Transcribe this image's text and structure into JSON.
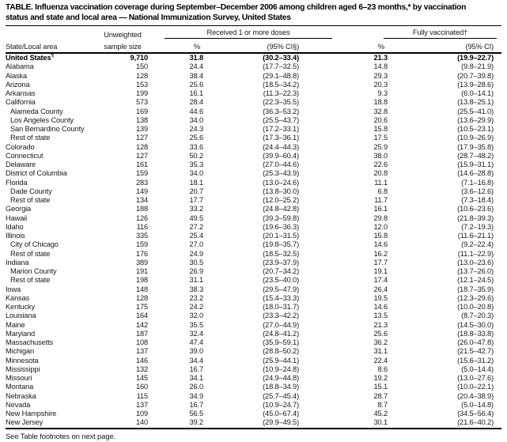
{
  "title": {
    "line1": "TABLE. Influenza vaccination coverage during September–December 2006 among children aged 6–23 months,* by vaccination",
    "line2": "status and state and local area — National Immunization Survey, United States"
  },
  "header": {
    "state_col": "State/Local area",
    "sample_line1": "Unweighted",
    "sample_line2": "sample size",
    "group1": "Received 1 or more doses",
    "group2": "Fully vaccinated†",
    "pct1": "%",
    "ci1": "(95% CI§)",
    "pct2": "%",
    "ci2": "(95% CI)"
  },
  "rows": [
    {
      "area": "United States",
      "marker": "¶",
      "bold": true,
      "indent": false,
      "sample": "9,710",
      "dose1_pct": "31.8",
      "dose1_ci": "(30.2–33.4)",
      "full_pct": "21.3",
      "full_ci": "(19.9–22.7)"
    },
    {
      "area": "Alabama",
      "indent": false,
      "sample": "150",
      "dose1_pct": "24.4",
      "dose1_ci": "(17.7–32.5)",
      "full_pct": "14.8",
      "full_ci": "(9.8–21.9)"
    },
    {
      "area": "Alaska",
      "indent": false,
      "sample": "128",
      "dose1_pct": "38.4",
      "dose1_ci": "(29.1–48.8)",
      "full_pct": "29.3",
      "full_ci": "(20.7–39.8)"
    },
    {
      "area": "Arizona",
      "indent": false,
      "sample": "153",
      "dose1_pct": "25.6",
      "dose1_ci": "(18.5–34.2)",
      "full_pct": "20.3",
      "full_ci": "(13.9–28.6)"
    },
    {
      "area": "Arkansas",
      "indent": false,
      "sample": "199",
      "dose1_pct": "16.1",
      "dose1_ci": "(11.3–22.3)",
      "full_pct": "9.3",
      "full_ci": "(6.0–14.1)"
    },
    {
      "area": "California",
      "indent": false,
      "sample": "573",
      "dose1_pct": "28.4",
      "dose1_ci": "(22.3–35.5)",
      "full_pct": "18.8",
      "full_ci": "(13.8–25.1)"
    },
    {
      "area": "Alameda County",
      "indent": true,
      "sample": "169",
      "dose1_pct": "44.6",
      "dose1_ci": "(36.3–53.2)",
      "full_pct": "32.8",
      "full_ci": "(25.5–41.0)"
    },
    {
      "area": "Los Angeles County",
      "indent": true,
      "sample": "138",
      "dose1_pct": "34.0",
      "dose1_ci": "(25.5–43.7)",
      "full_pct": "20.6",
      "full_ci": "(13.6–29.9)"
    },
    {
      "area": "San Bernardino County",
      "indent": true,
      "sample": "139",
      "dose1_pct": "24.3",
      "dose1_ci": "(17.2–33.1)",
      "full_pct": "15.8",
      "full_ci": "(10.5–23.1)"
    },
    {
      "area": "Rest of state",
      "indent": true,
      "sample": "127",
      "dose1_pct": "25.6",
      "dose1_ci": "(17.3–36.1)",
      "full_pct": "17.5",
      "full_ci": "(10.9–26.9)"
    },
    {
      "area": "Colorado",
      "indent": false,
      "sample": "128",
      "dose1_pct": "33.6",
      "dose1_ci": "(24.4–44.3)",
      "full_pct": "25.9",
      "full_ci": "(17.9–35.8)"
    },
    {
      "area": "Connecticut",
      "indent": false,
      "sample": "127",
      "dose1_pct": "50.2",
      "dose1_ci": "(39.9–60.4)",
      "full_pct": "38.0",
      "full_ci": "(28.7–48.2)"
    },
    {
      "area": "Delaware",
      "indent": false,
      "sample": "161",
      "dose1_pct": "35.3",
      "dose1_ci": "(27.0–44.6)",
      "full_pct": "22.6",
      "full_ci": "(15.9–31.1)"
    },
    {
      "area": "District of Columbia",
      "indent": false,
      "sample": "159",
      "dose1_pct": "34.0",
      "dose1_ci": "(25.3–43.9)",
      "full_pct": "20.8",
      "full_ci": "(14.6–28.8)"
    },
    {
      "area": "Florida",
      "indent": false,
      "sample": "283",
      "dose1_pct": "18.1",
      "dose1_ci": "(13.0–24.6)",
      "full_pct": "11.1",
      "full_ci": "(7.1–16.8)"
    },
    {
      "area": "Dade County",
      "indent": true,
      "sample": "149",
      "dose1_pct": "20.7",
      "dose1_ci": "(13.8–30.0)",
      "full_pct": "6.8",
      "full_ci": "(3.6–12.6)"
    },
    {
      "area": "Rest of state",
      "indent": true,
      "sample": "134",
      "dose1_pct": "17.7",
      "dose1_ci": "(12.0–25.2)",
      "full_pct": "11.7",
      "full_ci": "(7.3–18.4)"
    },
    {
      "area": "Georgia",
      "indent": false,
      "sample": "188",
      "dose1_pct": "33.2",
      "dose1_ci": "(24.8–42.8)",
      "full_pct": "16.1",
      "full_ci": "(10.6–23.6)"
    },
    {
      "area": "Hawaii",
      "indent": false,
      "sample": "126",
      "dose1_pct": "49.5",
      "dose1_ci": "(39.3–59.8)",
      "full_pct": "29.8",
      "full_ci": "(21.8–39.3)"
    },
    {
      "area": "Idaho",
      "indent": false,
      "sample": "116",
      "dose1_pct": "27.2",
      "dose1_ci": "(19.6–36.3)",
      "full_pct": "12.0",
      "full_ci": "(7.2–19.3)"
    },
    {
      "area": "Illinois",
      "indent": false,
      "sample": "335",
      "dose1_pct": "25.4",
      "dose1_ci": "(20.1–31.5)",
      "full_pct": "15.8",
      "full_ci": "(11.6–21.1)"
    },
    {
      "area": "City of Chicago",
      "indent": true,
      "sample": "159",
      "dose1_pct": "27.0",
      "dose1_ci": "(19.8–35.7)",
      "full_pct": "14.6",
      "full_ci": "(9.2–22.4)"
    },
    {
      "area": "Rest of state",
      "indent": true,
      "sample": "176",
      "dose1_pct": "24.9",
      "dose1_ci": "(18.5–32.5)",
      "full_pct": "16.2",
      "full_ci": "(11.1–22.9)"
    },
    {
      "area": "Indiana",
      "indent": false,
      "sample": "389",
      "dose1_pct": "30.5",
      "dose1_ci": "(23.9–37.9)",
      "full_pct": "17.7",
      "full_ci": "(13.0–23.6)"
    },
    {
      "area": "Marion County",
      "indent": true,
      "sample": "191",
      "dose1_pct": "26.9",
      "dose1_ci": "(20.7–34.2)",
      "full_pct": "19.1",
      "full_ci": "(13.7–26.0)"
    },
    {
      "area": "Rest of state",
      "indent": true,
      "sample": "198",
      "dose1_pct": "31.1",
      "dose1_ci": "(23.5–40.0)",
      "full_pct": "17.4",
      "full_ci": "(12.1–24.5)"
    },
    {
      "area": "Iowa",
      "indent": false,
      "sample": "148",
      "dose1_pct": "38.3",
      "dose1_ci": "(29.5–47.9)",
      "full_pct": "26.4",
      "full_ci": "(18.7–35.9)"
    },
    {
      "area": "Kansas",
      "indent": false,
      "sample": "128",
      "dose1_pct": "23.2",
      "dose1_ci": "(15.4–33.3)",
      "full_pct": "19.5",
      "full_ci": "(12.3–29.6)"
    },
    {
      "area": "Kentucky",
      "indent": false,
      "sample": "175",
      "dose1_pct": "24.2",
      "dose1_ci": "(18.0–31.7)",
      "full_pct": "14.6",
      "full_ci": "(10.0–20.8)"
    },
    {
      "area": "Louisiana",
      "indent": false,
      "sample": "164",
      "dose1_pct": "32.0",
      "dose1_ci": "(23.3–42.2)",
      "full_pct": "13.5",
      "full_ci": "(8.7–20.3)"
    },
    {
      "area": "Maine",
      "indent": false,
      "sample": "142",
      "dose1_pct": "35.5",
      "dose1_ci": "(27.0–44.9)",
      "full_pct": "21.3",
      "full_ci": "(14.5–30.0)"
    },
    {
      "area": "Maryland",
      "indent": false,
      "sample": "187",
      "dose1_pct": "32.4",
      "dose1_ci": "(24.8–41.2)",
      "full_pct": "25.6",
      "full_ci": "(18.8–33.8)"
    },
    {
      "area": "Massachusetts",
      "indent": false,
      "sample": "108",
      "dose1_pct": "47.4",
      "dose1_ci": "(35.9–59.1)",
      "full_pct": "36.2",
      "full_ci": "(26.0–47.8)"
    },
    {
      "area": "Michigan",
      "indent": false,
      "sample": "137",
      "dose1_pct": "39.0",
      "dose1_ci": "(28.8–50.2)",
      "full_pct": "31.1",
      "full_ci": "(21.5–42.7)"
    },
    {
      "area": "Minnesota",
      "indent": false,
      "sample": "146",
      "dose1_pct": "34.4",
      "dose1_ci": "(25.9–44.1)",
      "full_pct": "22.4",
      "full_ci": "(15.6–31.2)"
    },
    {
      "area": "Mississippi",
      "indent": false,
      "sample": "132",
      "dose1_pct": "16.7",
      "dose1_ci": "(10.9–24.8)",
      "full_pct": "8.6",
      "full_ci": "(5.0–14.4)"
    },
    {
      "area": "Missouri",
      "indent": false,
      "sample": "145",
      "dose1_pct": "34.1",
      "dose1_ci": "(24.9–44.8)",
      "full_pct": "19.2",
      "full_ci": "(13.0–27.6)"
    },
    {
      "area": "Montana",
      "indent": false,
      "sample": "160",
      "dose1_pct": "26.0",
      "dose1_ci": "(18.8–34.9)",
      "full_pct": "15.1",
      "full_ci": "(10.0–22.1)"
    },
    {
      "area": "Nebraska",
      "indent": false,
      "sample": "115",
      "dose1_pct": "34.9",
      "dose1_ci": "(25.7–45.4)",
      "full_pct": "28.7",
      "full_ci": "(20.4–38.9)"
    },
    {
      "area": "Nevada",
      "indent": false,
      "sample": "137",
      "dose1_pct": "16.7",
      "dose1_ci": "(10.9–24.7)",
      "full_pct": "8.7",
      "full_ci": "(5.0–14.8)"
    },
    {
      "area": "New Hampshire",
      "indent": false,
      "sample": "109",
      "dose1_pct": "56.5",
      "dose1_ci": "(45.0–67.4)",
      "full_pct": "45.2",
      "full_ci": "(34.5–56.4)"
    },
    {
      "area": "New Jersey",
      "indent": false,
      "sample": "140",
      "dose1_pct": "39.2",
      "dose1_ci": "(29.9–49.5)",
      "full_pct": "30.1",
      "full_ci": "(21.6–40.2)"
    }
  ],
  "footer": "See Table footnotes on next page.",
  "colors": {
    "background": "#ffffff",
    "text": "#1a1a1a",
    "rule": "#000000"
  }
}
